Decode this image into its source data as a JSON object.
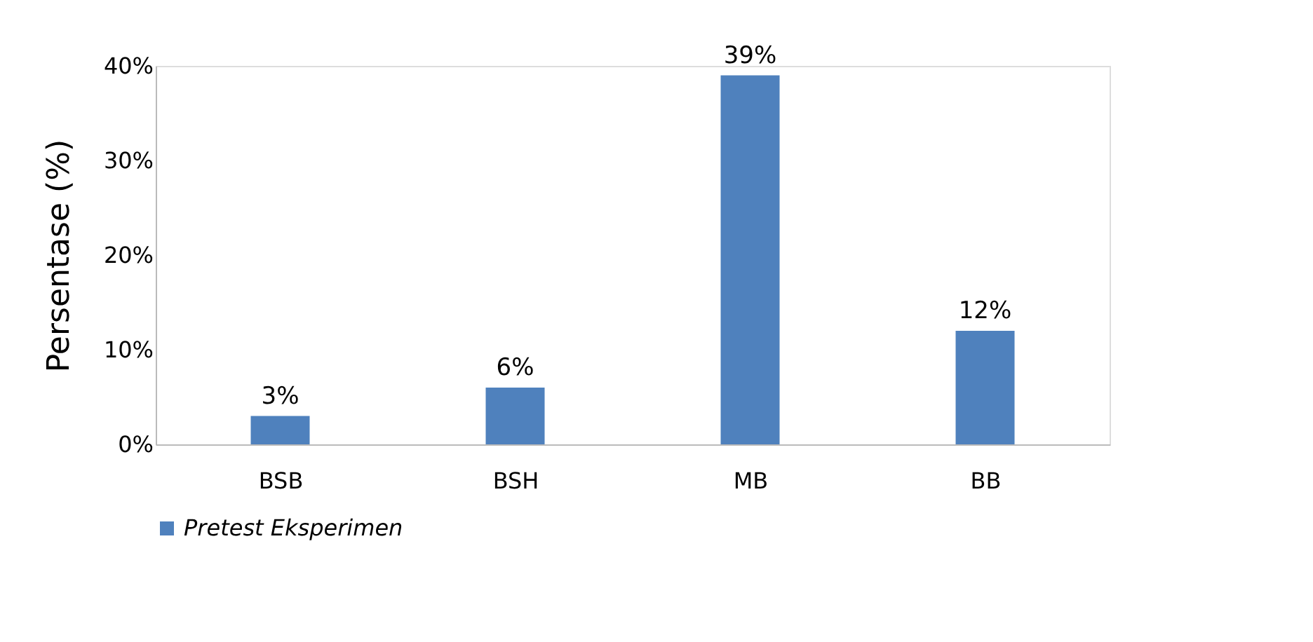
{
  "chart_data": {
    "type": "bar",
    "ylabel": "Persentase (%)",
    "categories": [
      "BSB",
      "BSH",
      "MB",
      "BB"
    ],
    "series": [
      {
        "name": "Pretest Eksperimen",
        "color": "#4f81bd",
        "values": [
          3,
          6,
          39,
          12
        ],
        "value_labels": [
          "3%",
          "6%",
          "39%",
          "12%"
        ]
      }
    ],
    "ylim": [
      0,
      40
    ],
    "yticks": [
      {
        "value": 0,
        "label": "0%"
      },
      {
        "value": 10,
        "label": "10%"
      },
      {
        "value": 20,
        "label": "20%"
      },
      {
        "value": 30,
        "label": "30%"
      },
      {
        "value": 40,
        "label": "40%"
      }
    ],
    "grid": false,
    "legend": "bottom"
  }
}
